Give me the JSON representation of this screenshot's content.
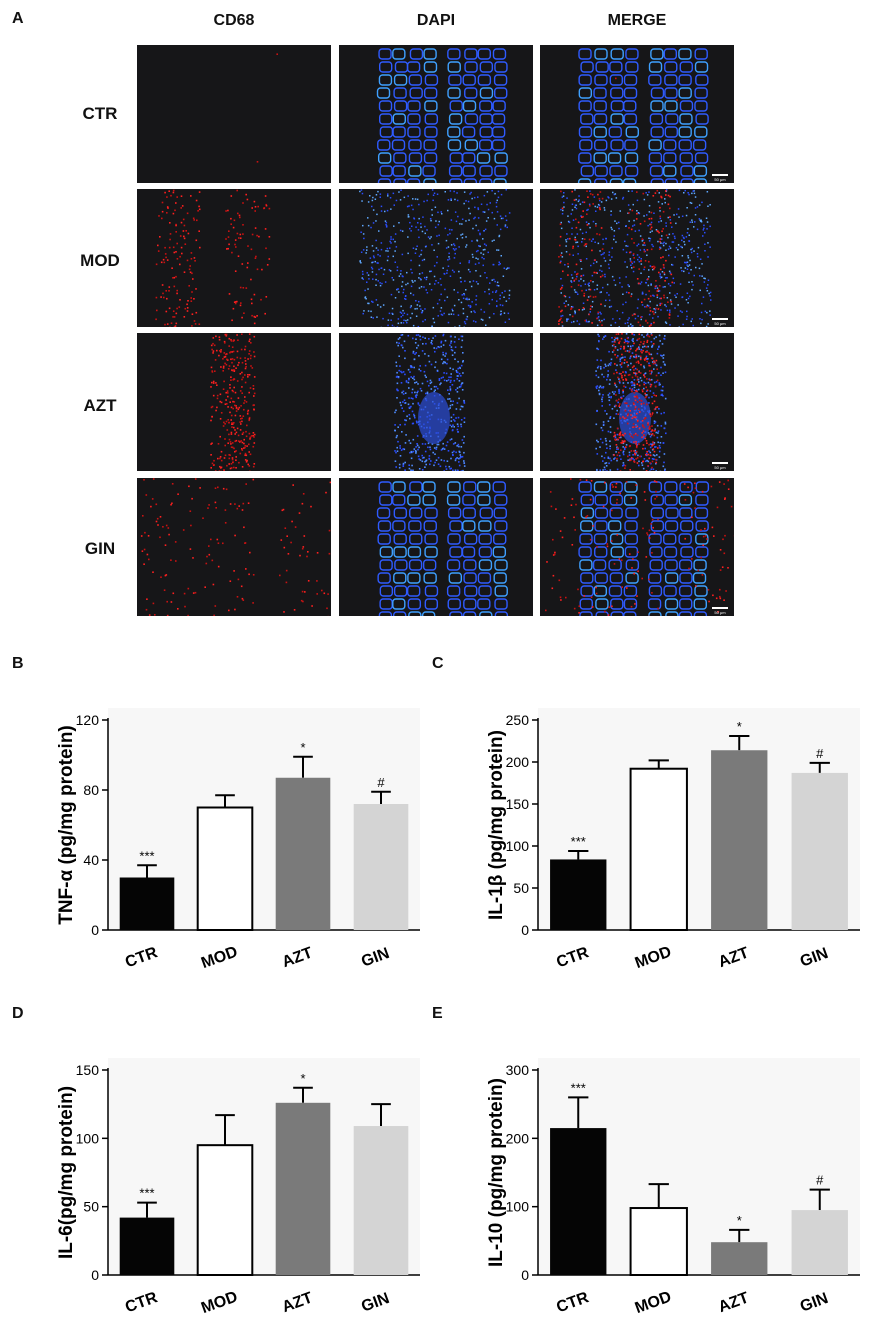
{
  "figure_a": {
    "letter": "A",
    "columns": [
      "CD68",
      "DAPI",
      "MERGE"
    ],
    "rows": [
      "CTR",
      "MOD",
      "AZT",
      "GIN"
    ],
    "scale_bar_label": "50 μm"
  },
  "chart_data": [
    {
      "letter": "B",
      "type": "bar",
      "categories": [
        "CTR",
        "MOD",
        "AZT",
        "GIN"
      ],
      "values": [
        30,
        70,
        87,
        72
      ],
      "errors": [
        7,
        7,
        12,
        7
      ],
      "significance": [
        "***",
        "",
        "*",
        "#"
      ],
      "ylabel": "TNF-α (pg/mg protein)",
      "ylim": [
        0,
        120
      ],
      "yticks": [
        0,
        40,
        80,
        120
      ],
      "bar_colors": [
        "#050505",
        "#ffffff",
        "#7a7a7a",
        "#d4d4d4"
      ]
    },
    {
      "letter": "C",
      "type": "bar",
      "categories": [
        "CTR",
        "MOD",
        "AZT",
        "GIN"
      ],
      "values": [
        84,
        192,
        214,
        187
      ],
      "errors": [
        10,
        10,
        17,
        12
      ],
      "significance": [
        "***",
        "",
        "*",
        "#"
      ],
      "ylabel": "IL-1β (pg/mg protein)",
      "ylim": [
        0,
        250
      ],
      "yticks": [
        0,
        50,
        100,
        150,
        200,
        250
      ],
      "bar_colors": [
        "#050505",
        "#ffffff",
        "#7a7a7a",
        "#d4d4d4"
      ]
    },
    {
      "letter": "D",
      "type": "bar",
      "categories": [
        "CTR",
        "MOD",
        "AZT",
        "GIN"
      ],
      "values": [
        42,
        95,
        126,
        109
      ],
      "errors": [
        11,
        22,
        11,
        16
      ],
      "significance": [
        "***",
        "",
        "*",
        ""
      ],
      "ylabel": "IL-6(pg/mg protein)",
      "ylim": [
        0,
        150
      ],
      "yticks": [
        0,
        50,
        100,
        150
      ],
      "bar_colors": [
        "#050505",
        "#ffffff",
        "#7a7a7a",
        "#d4d4d4"
      ]
    },
    {
      "letter": "E",
      "type": "bar",
      "categories": [
        "CTR",
        "MOD",
        "AZT",
        "GIN"
      ],
      "values": [
        215,
        98,
        48,
        95
      ],
      "errors": [
        45,
        35,
        18,
        30
      ],
      "significance": [
        "***",
        "",
        "*",
        "#"
      ],
      "ylabel": "IL-10 (pg/mg protein)",
      "ylim": [
        0,
        300
      ],
      "yticks": [
        0,
        100,
        200,
        300
      ],
      "bar_colors": [
        "#050505",
        "#ffffff",
        "#7a7a7a",
        "#d4d4d4"
      ]
    }
  ]
}
